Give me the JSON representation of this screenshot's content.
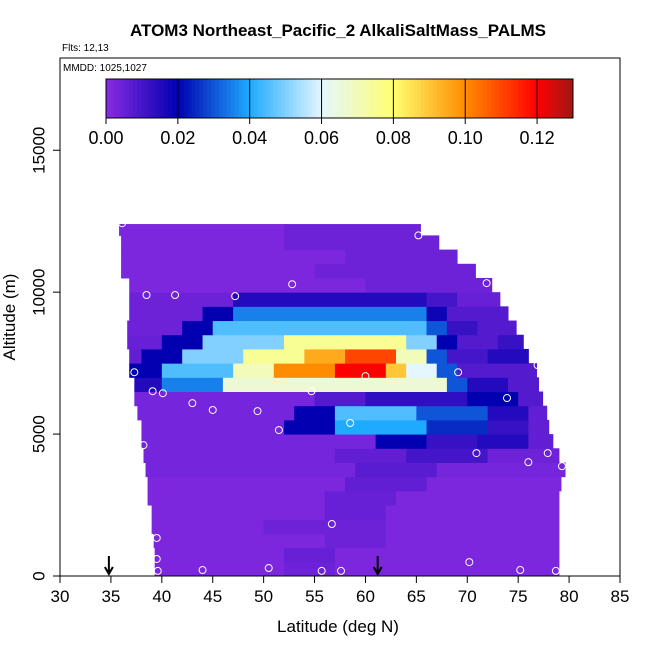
{
  "chart_data": {
    "type": "curtain",
    "title": "ATOM3 Northeast_Pacific_2 AlkaliSaltMass_PALMS",
    "subtitle": "Flts: 12,13",
    "annotation": "MMDD: 1025,1027",
    "x_label": "Latitude (deg N)",
    "y_label": "Altitude (m)",
    "xlim": [
      30,
      85
    ],
    "xticks": [
      30,
      35,
      40,
      45,
      50,
      55,
      60,
      65,
      70,
      75,
      80,
      85
    ],
    "ylim": [
      0,
      18250
    ],
    "yticks": [
      0,
      5000,
      10000,
      15000
    ],
    "clim": [
      0,
      0.13
    ],
    "cticks": [
      {
        "value": 0,
        "label": "0.00"
      },
      {
        "value": 0.02,
        "label": "0.02"
      },
      {
        "value": 0.04,
        "label": "0.04"
      },
      {
        "value": 0.06,
        "label": "0.06"
      },
      {
        "value": 0.08,
        "label": "0.08"
      },
      {
        "value": 0.1,
        "label": "0.10"
      },
      {
        "value": 0.12,
        "label": "0.12"
      }
    ],
    "colorscale": [
      [
        0,
        "#8a2be2"
      ],
      [
        0.02,
        "#0000b0"
      ],
      [
        0.04,
        "#1eaaff"
      ],
      [
        0.06,
        "#e4f6ff"
      ],
      [
        0.08,
        "#ffff70"
      ],
      [
        0.1,
        "#ff8c00"
      ],
      [
        0.12,
        "#ff0000"
      ],
      [
        0.13,
        "#a01818"
      ]
    ],
    "rows": [
      {
        "alt": [
          0,
          500
        ],
        "segments": [
          [
            39.3,
            52,
            0.002
          ],
          [
            52,
            57,
            0.004
          ],
          [
            57,
            79,
            0.002
          ]
        ]
      },
      {
        "alt": [
          500,
          1000
        ],
        "segments": [
          [
            39.3,
            52,
            0.002
          ],
          [
            52,
            57,
            0.005
          ],
          [
            57,
            79,
            0.002
          ]
        ]
      },
      {
        "alt": [
          1000,
          1500
        ],
        "segments": [
          [
            39.2,
            56,
            0.002
          ],
          [
            56,
            62,
            0.004
          ],
          [
            62,
            79,
            0.002
          ]
        ]
      },
      {
        "alt": [
          1500,
          2000
        ],
        "segments": [
          [
            39,
            50,
            0.002
          ],
          [
            50,
            62,
            0.004
          ],
          [
            62,
            79,
            0.002
          ]
        ]
      },
      {
        "alt": [
          2000,
          2500
        ],
        "segments": [
          [
            39,
            56,
            0.002
          ],
          [
            56,
            62,
            0.005
          ],
          [
            62,
            79,
            0.002
          ]
        ]
      },
      {
        "alt": [
          2500,
          3000
        ],
        "segments": [
          [
            38.6,
            56,
            0.002
          ],
          [
            56,
            63,
            0.005
          ],
          [
            63,
            79,
            0.002
          ]
        ]
      },
      {
        "alt": [
          3000,
          3500
        ],
        "segments": [
          [
            38.6,
            58,
            0.002
          ],
          [
            58,
            66,
            0.006
          ],
          [
            66,
            79.2,
            0.002
          ]
        ]
      },
      {
        "alt": [
          3500,
          4000
        ],
        "segments": [
          [
            38.4,
            59,
            0.003
          ],
          [
            59,
            67,
            0.007
          ],
          [
            67,
            79.6,
            0.003
          ]
        ]
      },
      {
        "alt": [
          4000,
          4500
        ],
        "segments": [
          [
            38.2,
            57,
            0.003
          ],
          [
            57,
            64,
            0.006
          ],
          [
            64,
            72,
            0.01
          ],
          [
            72,
            79,
            0.004
          ]
        ]
      },
      {
        "alt": [
          4500,
          5000
        ],
        "segments": [
          [
            38,
            61,
            0.003
          ],
          [
            61,
            66,
            0.02
          ],
          [
            66,
            71,
            0.012
          ],
          [
            71,
            76,
            0.015
          ],
          [
            76,
            78.4,
            0.006
          ]
        ]
      },
      {
        "alt": [
          5000,
          5500
        ],
        "segments": [
          [
            38,
            52,
            0.003
          ],
          [
            52,
            57,
            0.02
          ],
          [
            57,
            66,
            0.04
          ],
          [
            66,
            72,
            0.025
          ],
          [
            72,
            76,
            0.012
          ],
          [
            76,
            78,
            0.006
          ]
        ]
      },
      {
        "alt": [
          5500,
          6000
        ],
        "segments": [
          [
            37.6,
            53,
            0.003
          ],
          [
            53,
            57,
            0.02
          ],
          [
            57,
            65,
            0.045
          ],
          [
            65,
            72,
            0.03
          ],
          [
            72,
            76,
            0.015
          ],
          [
            76,
            77.8,
            0.006
          ]
        ]
      },
      {
        "alt": [
          6000,
          6500
        ],
        "segments": [
          [
            37.3,
            55,
            0.003
          ],
          [
            55,
            60,
            0.008
          ],
          [
            60,
            70,
            0.013
          ],
          [
            70,
            75,
            0.02
          ],
          [
            75,
            77.4,
            0.008
          ]
        ]
      },
      {
        "alt": [
          6500,
          7000
        ],
        "segments": [
          [
            37.3,
            40,
            0.015
          ],
          [
            40,
            46,
            0.035
          ],
          [
            46,
            68,
            0.066
          ],
          [
            68,
            70,
            0.03
          ],
          [
            70,
            74,
            0.015
          ],
          [
            74,
            77,
            0.008
          ]
        ]
      },
      {
        "alt": [
          7000,
          7500
        ],
        "segments": [
          [
            36.8,
            40,
            0.02
          ],
          [
            40,
            47,
            0.045
          ],
          [
            47,
            51,
            0.07
          ],
          [
            51,
            57,
            0.1
          ],
          [
            57,
            62,
            0.12
          ],
          [
            62,
            64,
            0.09
          ],
          [
            64,
            67,
            0.06
          ],
          [
            67,
            69,
            0.03
          ],
          [
            69,
            76.8,
            0.008
          ]
        ]
      },
      {
        "alt": [
          7500,
          8000
        ],
        "segments": [
          [
            36.8,
            38,
            0.006
          ],
          [
            38,
            42,
            0.02
          ],
          [
            42,
            48,
            0.05
          ],
          [
            48,
            54,
            0.075
          ],
          [
            54,
            58,
            0.095
          ],
          [
            58,
            63,
            0.11
          ],
          [
            63,
            66,
            0.07
          ],
          [
            66,
            68,
            0.03
          ],
          [
            68,
            72,
            0.01
          ],
          [
            72,
            76,
            0.015
          ]
        ]
      },
      {
        "alt": [
          8000,
          8500
        ],
        "segments": [
          [
            36.6,
            40,
            0.005
          ],
          [
            40,
            44,
            0.02
          ],
          [
            44,
            52,
            0.05
          ],
          [
            52,
            64,
            0.075
          ],
          [
            64,
            67,
            0.05
          ],
          [
            67,
            69,
            0.02
          ],
          [
            69,
            73,
            0.008
          ],
          [
            73,
            75.5,
            0.012
          ]
        ]
      },
      {
        "alt": [
          8500,
          9000
        ],
        "segments": [
          [
            36.6,
            42,
            0.004
          ],
          [
            42,
            45,
            0.02
          ],
          [
            45,
            66,
            0.045
          ],
          [
            66,
            68,
            0.03
          ],
          [
            68,
            71,
            0.012
          ],
          [
            71,
            74.8,
            0.008
          ]
        ]
      },
      {
        "alt": [
          9000,
          9500
        ],
        "segments": [
          [
            36.8,
            44,
            0.004
          ],
          [
            44,
            47,
            0.02
          ],
          [
            47,
            66,
            0.035
          ],
          [
            66,
            68,
            0.018
          ],
          [
            68,
            74,
            0.008
          ]
        ]
      },
      {
        "alt": [
          9500,
          10000
        ],
        "segments": [
          [
            36.8,
            47,
            0.004
          ],
          [
            47,
            66,
            0.015
          ],
          [
            66,
            69,
            0.01
          ],
          [
            69,
            73.2,
            0.005
          ]
        ]
      },
      {
        "alt": [
          10000,
          10500
        ],
        "segments": [
          [
            36.8,
            60,
            0.002
          ],
          [
            60,
            72.4,
            0.004
          ]
        ]
      },
      {
        "alt": [
          10500,
          11000
        ],
        "segments": [
          [
            36,
            55,
            0.002
          ],
          [
            55,
            70.8,
            0.004
          ]
        ]
      },
      {
        "alt": [
          11000,
          11500
        ],
        "segments": [
          [
            36,
            58,
            0.002
          ],
          [
            58,
            69,
            0.004
          ]
        ]
      },
      {
        "alt": [
          11500,
          12000
        ],
        "segments": [
          [
            36,
            52,
            0.002
          ],
          [
            52,
            67.2,
            0.004
          ]
        ]
      },
      {
        "alt": [
          12000,
          12400
        ],
        "segments": [
          [
            35.8,
            52,
            0.002
          ],
          [
            52,
            65.4,
            0.004
          ]
        ]
      }
    ],
    "points": {
      "lat": [
        36.1,
        65.2,
        38.5,
        41.3,
        47.2,
        52.8,
        71.9,
        37.3,
        39.1,
        40.1,
        43,
        45,
        49.4,
        51.5,
        54.7,
        58.5,
        60,
        69.1,
        73.9,
        76.9,
        38.2,
        70.9,
        76,
        77.9,
        79.3,
        39.5,
        56.7,
        39.5,
        39.6,
        44,
        50.5,
        55.7,
        57.6,
        70.2,
        75.2,
        78.7
      ],
      "alt": [
        12430,
        12000,
        9900,
        9900,
        9860,
        10280,
        10320,
        7180,
        6510,
        6440,
        6090,
        5850,
        5810,
        5140,
        6510,
        5390,
        7040,
        7180,
        6270,
        7430,
        4610,
        4330,
        4010,
        4330,
        3870,
        1340,
        1830,
        600,
        180,
        210,
        280,
        180,
        180,
        490,
        210,
        180
      ]
    },
    "arrows": [
      34.8,
      61.2
    ]
  }
}
